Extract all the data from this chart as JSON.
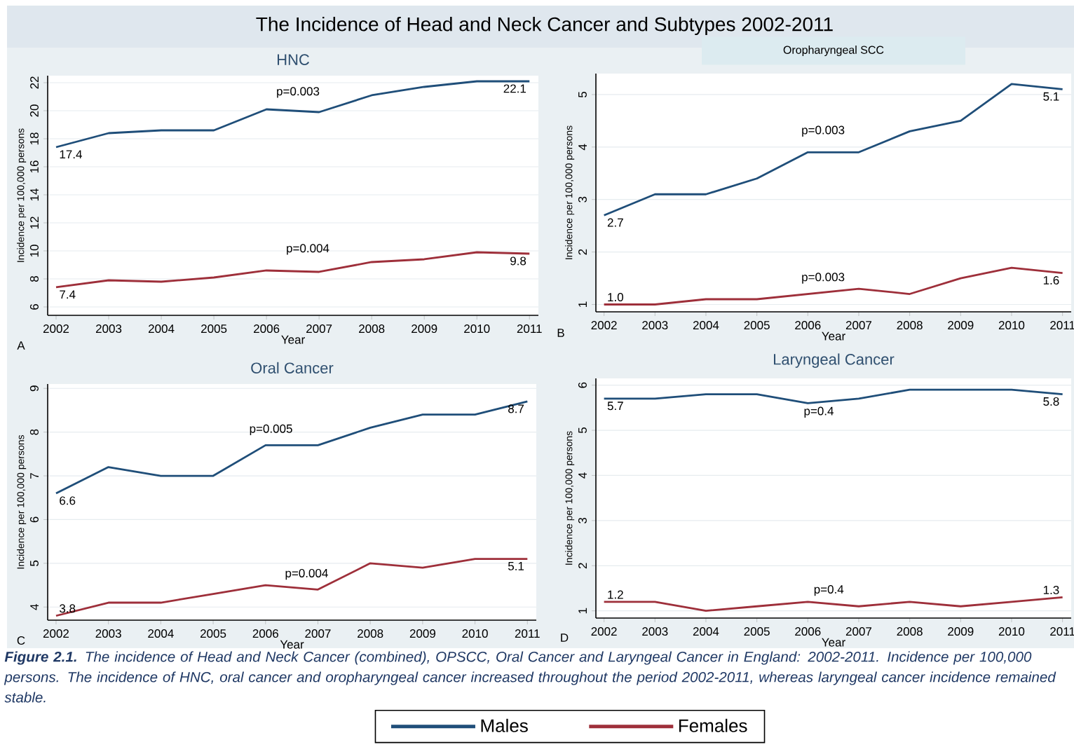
{
  "chart_data": [
    {
      "type": "line",
      "title": "HNC",
      "xlabel": "Year",
      "ylabel": "Incidence per 100,000 persons",
      "x": [
        2002,
        2003,
        2004,
        2005,
        2006,
        2007,
        2008,
        2009,
        2010,
        2011
      ],
      "xlim": [
        2001.84,
        2011.17
      ],
      "xticks": [
        2002,
        2003,
        2004,
        2005,
        2006,
        2007,
        2008,
        2009,
        2010,
        2011
      ],
      "ylim": [
        5.4,
        22.5
      ],
      "yticks": [
        6,
        8,
        10,
        12,
        14,
        16,
        18,
        20,
        22
      ],
      "grid": "y",
      "series": [
        {
          "color": "#1f4e79",
          "values": [
            17.4,
            18.4,
            18.6,
            18.6,
            20.1,
            19.9,
            21.1,
            21.7,
            22.1,
            22.1
          ],
          "value_labels": [
            "17.4",
            null,
            null,
            null,
            null,
            null,
            null,
            null,
            null,
            "22.1"
          ]
        },
        {
          "color": "#9e2f3a",
          "values": [
            7.4,
            7.9,
            7.8,
            8.1,
            8.6,
            8.5,
            9.2,
            9.4,
            9.9,
            9.8
          ],
          "value_labels": [
            "7.4",
            null,
            null,
            null,
            null,
            null,
            null,
            null,
            null,
            "9.8"
          ]
        }
      ],
      "annotations": [
        "A",
        "p=0.003",
        "p=0.004"
      ]
    },
    {
      "type": "line",
      "title": "Oropharyngeal SCC",
      "xlabel": "Year",
      "ylabel": "Incidence per 100,000 persons",
      "x": [
        2002,
        2003,
        2004,
        2005,
        2006,
        2007,
        2008,
        2009,
        2010,
        2011
      ],
      "xlim": [
        2001.84,
        2011.17
      ],
      "xticks": [
        2002,
        2003,
        2004,
        2005,
        2006,
        2007,
        2008,
        2009,
        2010,
        2011
      ],
      "ylim": [
        0.86,
        5.4
      ],
      "yticks": [
        1,
        2,
        3,
        4,
        5
      ],
      "grid": "y",
      "series": [
        {
          "color": "#1f4e79",
          "values": [
            2.7,
            3.1,
            3.1,
            3.4,
            3.9,
            3.9,
            4.3,
            4.5,
            5.2,
            5.1
          ],
          "value_labels": [
            "2.7",
            null,
            null,
            null,
            null,
            null,
            null,
            null,
            null,
            "5.1"
          ]
        },
        {
          "color": "#9e2f3a",
          "values": [
            1.0,
            1.0,
            1.1,
            1.1,
            1.2,
            1.3,
            1.2,
            1.5,
            1.7,
            1.6
          ],
          "value_labels": [
            "1.0",
            null,
            null,
            null,
            null,
            null,
            null,
            null,
            null,
            "1.6"
          ]
        }
      ],
      "annotations": [
        "B",
        "p=0.003",
        "p=0.003"
      ]
    },
    {
      "type": "line",
      "title": "Oral Cancer",
      "xlabel": "Year",
      "ylabel": "Incidence per 100,000 persons",
      "x": [
        2002,
        2003,
        2004,
        2005,
        2006,
        2007,
        2008,
        2009,
        2010,
        2011
      ],
      "xlim": [
        2001.84,
        2011.17
      ],
      "xticks": [
        2002,
        2003,
        2004,
        2005,
        2006,
        2007,
        2008,
        2009,
        2010,
        2011
      ],
      "ylim": [
        3.7,
        9.1
      ],
      "yticks": [
        4,
        5,
        6,
        7,
        8,
        9
      ],
      "grid": "y",
      "series": [
        {
          "color": "#1f4e79",
          "values": [
            6.6,
            7.2,
            7.0,
            7.0,
            7.7,
            7.7,
            8.1,
            8.4,
            8.4,
            8.7
          ],
          "value_labels": [
            "6.6",
            null,
            null,
            null,
            null,
            null,
            null,
            null,
            null,
            "8.7"
          ]
        },
        {
          "color": "#9e2f3a",
          "values": [
            3.8,
            4.1,
            4.1,
            4.3,
            4.5,
            4.4,
            5.0,
            4.9,
            5.1,
            5.1
          ],
          "value_labels": [
            "3.8",
            null,
            null,
            null,
            null,
            null,
            null,
            null,
            null,
            "5.1"
          ]
        }
      ],
      "annotations": [
        "C",
        "p=0.005",
        "p=0.004"
      ]
    },
    {
      "type": "line",
      "title": "Laryngeal Cancer",
      "xlabel": "Year",
      "ylabel": "Incidence per 100,000 persons",
      "x": [
        2002,
        2003,
        2004,
        2005,
        2006,
        2007,
        2008,
        2009,
        2010,
        2011
      ],
      "xlim": [
        2001.84,
        2011.17
      ],
      "xticks": [
        2002,
        2003,
        2004,
        2005,
        2006,
        2007,
        2008,
        2009,
        2010,
        2011
      ],
      "ylim": [
        0.84,
        6.15
      ],
      "yticks": [
        1,
        2,
        3,
        4,
        5,
        6
      ],
      "grid": "y",
      "legend": "bottom",
      "series": [
        {
          "name": "Males",
          "color": "#1f4e79",
          "values": [
            5.7,
            5.7,
            5.8,
            5.8,
            5.6,
            5.7,
            5.9,
            5.9,
            5.9,
            5.8
          ],
          "value_labels": [
            "5.7",
            null,
            null,
            null,
            null,
            null,
            null,
            null,
            null,
            "5.8"
          ]
        },
        {
          "name": "Females",
          "color": "#9e2f3a",
          "values": [
            1.2,
            1.2,
            1.0,
            1.1,
            1.2,
            1.1,
            1.2,
            1.1,
            1.2,
            1.3
          ],
          "value_labels": [
            "1.2",
            null,
            null,
            null,
            null,
            null,
            null,
            null,
            null,
            "1.3"
          ]
        }
      ],
      "annotations": [
        "D",
        "p=0.4",
        "p=0.4"
      ]
    },
    {
      "type": "other",
      "title": "The Incidence of Head and Neck Cancer and Subtypes 2002-2011",
      "annotations": [
        "**Figure 2.1.** The incidence of Head and Neck Cancer (combined), OPSCC, Oral Cancer and Laryngeal Cancer in England: 2002-2011. Incidence per 100,000 persons. The incidence of HNC, oral cancer and oropharyngeal cancer increased throughout the period 2002-2011, whereas laryngeal cancer incidence remained stable."
      ]
    }
  ]
}
